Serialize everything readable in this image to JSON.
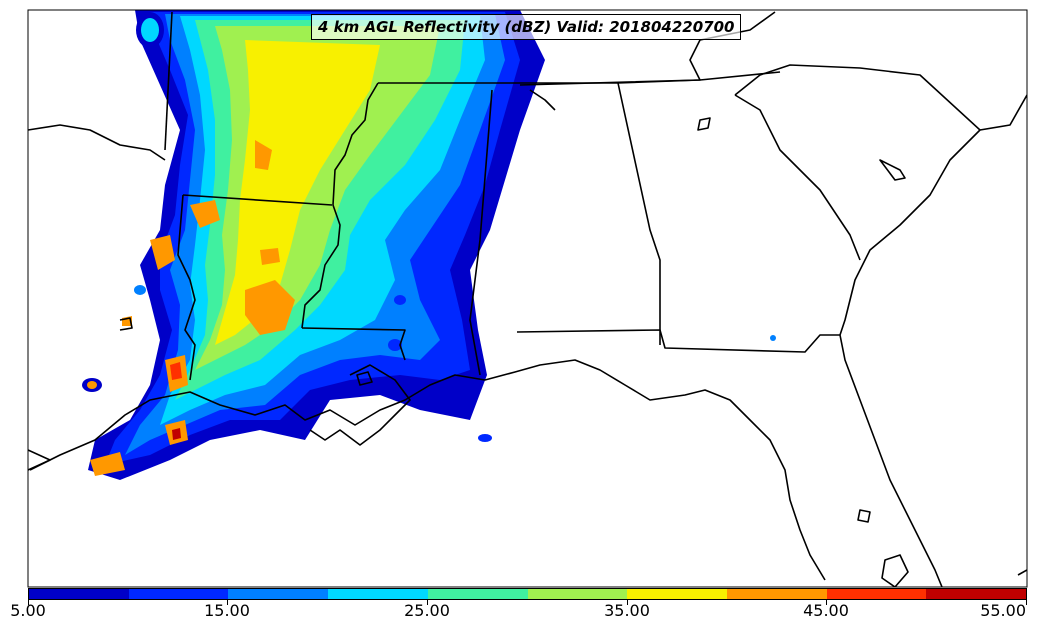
{
  "title": "4 km AGL Reflectivity (dBZ) Valid: 201804220700",
  "colorbar": {
    "colors": [
      "#0000c8",
      "#0028ff",
      "#0080ff",
      "#00d8ff",
      "#40f0a0",
      "#a0f050",
      "#f8f000",
      "#ff9800",
      "#ff3000",
      "#c00000"
    ],
    "ticks": [
      "5.00",
      "15.00",
      "25.00",
      "35.00",
      "45.00",
      "55.00"
    ]
  },
  "map_layers": {
    "coastline_color": "#000000",
    "precip_levels": [
      "5-10 dBZ",
      "10-15 dBZ",
      "15-20 dBZ",
      "20-25 dBZ",
      "25-30 dBZ",
      "30-35 dBZ",
      "35-40 dBZ",
      "40-45 dBZ",
      "45-50 dBZ",
      "50-55 dBZ"
    ]
  }
}
